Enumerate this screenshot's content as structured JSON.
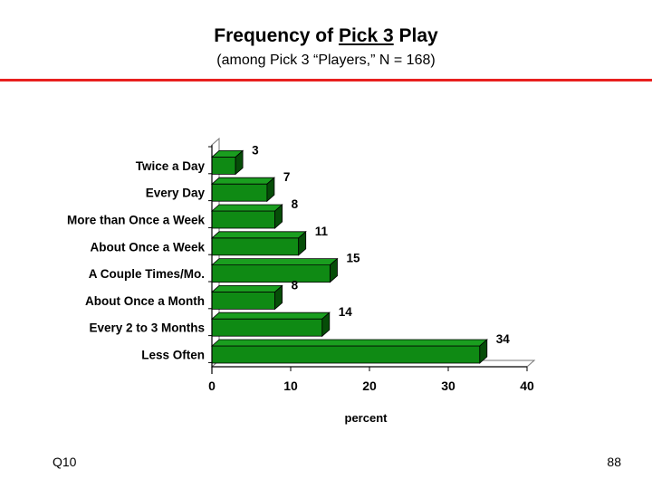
{
  "header": {
    "title_pre": "Frequency of ",
    "title_underlined": "Pick 3",
    "title_post": " Play",
    "subtitle": "(among Pick 3 “Players,” N = 168)"
  },
  "footer": {
    "question_id": "Q10",
    "page_number": "88"
  },
  "colors": {
    "rule": "#e8201e",
    "bar_front": "#0f8a14",
    "bar_top": "#1a9e1f",
    "bar_side": "#064d08"
  },
  "chart_data": {
    "type": "bar",
    "orientation": "horizontal",
    "categories": [
      "Twice a Day",
      "Every Day",
      "More than Once a Week",
      "About Once a Week",
      "A Couple Times/Mo.",
      "About Once a Month",
      "Every 2 to 3 Months",
      "Less Often"
    ],
    "values": [
      3,
      7,
      8,
      11,
      15,
      8,
      14,
      34
    ],
    "value_labels": [
      "3",
      "7",
      "8",
      "11",
      "15",
      "8",
      "14",
      "34"
    ],
    "xlabel": "percent",
    "xlim": [
      0,
      40
    ],
    "xticks": [
      "0",
      "10",
      "20",
      "30",
      "40"
    ],
    "grid": false,
    "style": "3d"
  }
}
